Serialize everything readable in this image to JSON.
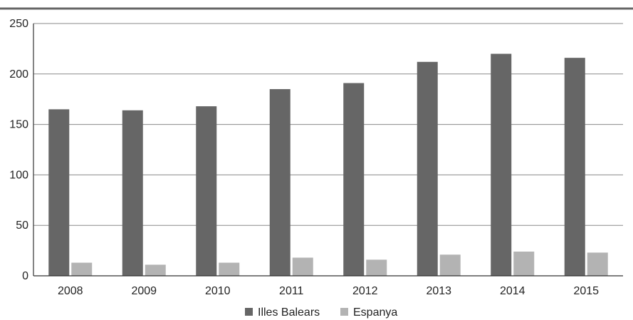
{
  "chart_data": {
    "type": "bar",
    "categories": [
      "2008",
      "2009",
      "2010",
      "2011",
      "2012",
      "2013",
      "2014",
      "2015"
    ],
    "series": [
      {
        "name": "Illes Balears",
        "color": "#666666",
        "values": [
          165,
          164,
          168,
          185,
          191,
          212,
          220,
          216
        ]
      },
      {
        "name": "Espanya",
        "color": "#b3b3b3",
        "values": [
          13,
          11,
          13,
          18,
          16,
          21,
          24,
          23
        ]
      }
    ],
    "yticks": [
      "0",
      "50",
      "100",
      "150",
      "200",
      "250"
    ],
    "ylim": [
      0,
      250
    ],
    "grid": true,
    "legend_position": "bottom-center"
  }
}
